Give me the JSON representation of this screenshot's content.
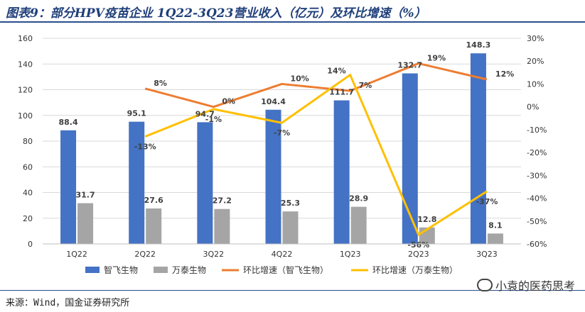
{
  "title": "图表9：部分HPV疫苗企业 1Q22-3Q23营业收入（亿元）及环比增速（%）",
  "source": "来源：Wind，国金证券研究所",
  "watermark": "小袁的医药思考",
  "chart_data": {
    "type": "bar",
    "categories": [
      "1Q22",
      "2Q22",
      "3Q22",
      "4Q22",
      "1Q23",
      "2Q23",
      "3Q23"
    ],
    "ylim": [
      0,
      160
    ],
    "yticks": [
      0,
      20,
      40,
      60,
      80,
      100,
      120,
      140,
      160
    ],
    "y2lim": [
      -60,
      30
    ],
    "y2ticks": [
      "30%",
      "20%",
      "10%",
      "0%",
      "-10%",
      "-20%",
      "-30%",
      "-40%",
      "-50%",
      "-60%"
    ],
    "series": [
      {
        "name": "智飞生物",
        "kind": "bar",
        "color": "#4472c4",
        "values": [
          88.4,
          95.1,
          94.7,
          104.4,
          111.7,
          132.7,
          148.3
        ],
        "labels": [
          "88.4",
          "95.1",
          "94.7",
          "104.4",
          "111.7",
          "132.7",
          "148.3"
        ]
      },
      {
        "name": "万泰生物",
        "kind": "bar",
        "color": "#a5a5a5",
        "values": [
          31.7,
          27.6,
          27.2,
          25.3,
          28.9,
          12.8,
          8.1
        ],
        "labels": [
          "31.7",
          "27.6",
          "27.2",
          "25.3",
          "28.9",
          "12.8",
          "8.1"
        ]
      },
      {
        "name": "环比增速（智飞生物）",
        "kind": "line",
        "axis": "right",
        "color": "#ed7d31",
        "values": [
          null,
          8,
          0,
          10,
          7,
          19,
          12
        ],
        "labels": [
          "",
          "8%",
          "0%",
          "10%",
          "7%",
          "19%",
          "12%"
        ]
      },
      {
        "name": "环比增速（万泰生物）",
        "kind": "line",
        "axis": "right",
        "color": "#ffc000",
        "values": [
          null,
          -13,
          -1,
          -7,
          14,
          -56,
          -37
        ],
        "labels": [
          "",
          "-13%",
          "-1%",
          "-7%",
          "14%",
          "-56%",
          "-37%"
        ]
      }
    ],
    "legend": "bottom"
  }
}
